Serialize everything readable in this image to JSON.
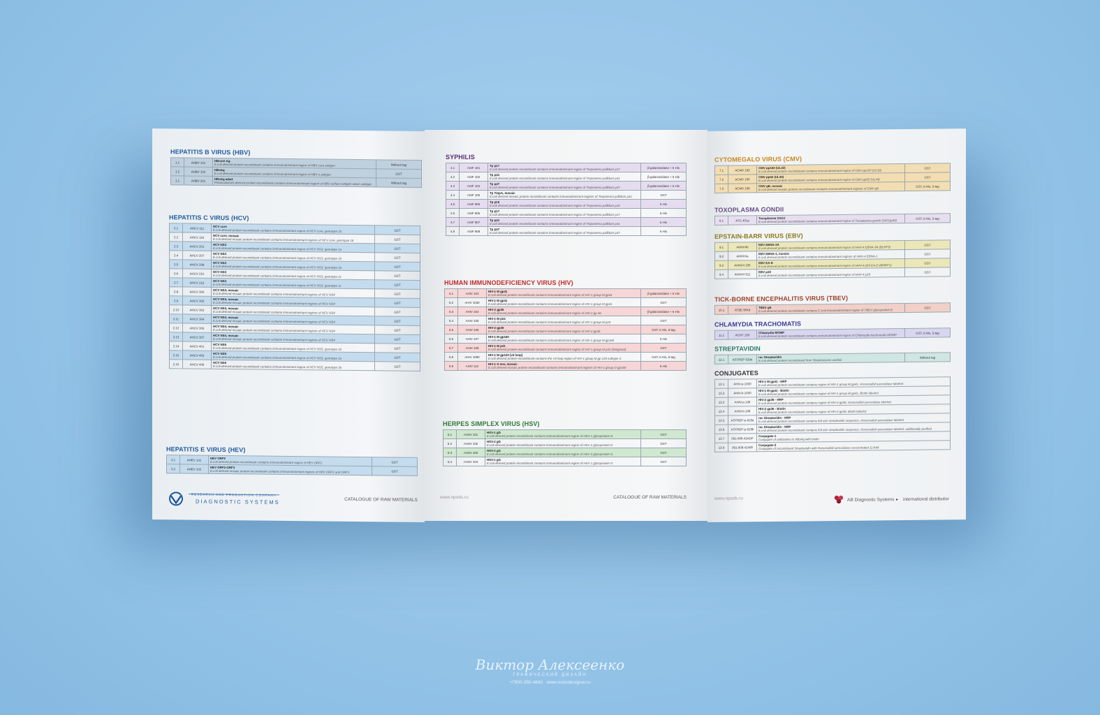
{
  "left": {
    "hbv": {
      "title": "HEPATITIS B VIRUS (HBV)",
      "rows": [
        {
          "n": "1.1",
          "code": "AHBV 101",
          "name": "HBcore Ag",
          "desc": "E.coli derived protein recombinant contains immunodominant region of HBV core antigen",
          "tag": "Without tag"
        },
        {
          "n": "1.2",
          "code": "AHBV 102",
          "name": "HBeAg",
          "desc": "E.coli derived protein recombinant contains immunodominant region of HBV e antigen",
          "tag": "GST"
        },
        {
          "n": "1.1",
          "code": "AHBV 201",
          "name": "HBsAg adw1",
          "desc": "Pichia pastoris derived protein recombinant contains immunodominant region of HBV surface antigen adw1 subtype",
          "tag": "Without tag"
        }
      ]
    },
    "hcv": {
      "title": "HEPATITIS C VIRUS (HCV)",
      "rows": [
        {
          "n": "2.1",
          "code": "AHCV 111",
          "name": "HCV core",
          "desc": "E.coli derived protein recombinant contains immunodominant region of HCV core, genotype 1b",
          "tag": "GST"
        },
        {
          "n": "2.2",
          "code": "AHCV 116",
          "name": "HCV core, mosaic",
          "desc": "E.coli derived mosaic protein recombinant contains immunodominant regions of HCV core, genotype 1b",
          "tag": "GST"
        },
        {
          "n": "2.3",
          "code": "AHCV 201",
          "name": "HCV NS3",
          "desc": "E.coli derived protein recombinant contains immunodominant region of HCV NS3, genotype 1a",
          "tag": "GST"
        },
        {
          "n": "2.4",
          "code": "AHCV 207",
          "name": "HCV NS3",
          "desc": "E.coli derived protein recombinant contains immunodominant region of HCV NS3, genotype 1b",
          "tag": "GST"
        },
        {
          "n": "2.5",
          "code": "AHCV 208",
          "name": "HCV NS3",
          "desc": "E.coli derived protein recombinant contains immunodominant region of HCV NS3, genotype 1b",
          "tag": "GST"
        },
        {
          "n": "2.6",
          "code": "AHCV 210",
          "name": "HCV NS3",
          "desc": "E.coli derived protein recombinant contains immunodominant region of HCV NS3, genotype 2c",
          "tag": "GST"
        },
        {
          "n": "2.7",
          "code": "AHCV 215",
          "name": "HCV NS3",
          "desc": "E.coli derived protein recombinant contains immunodominant region of HCV NS3, genotype 1c",
          "tag": "GST"
        },
        {
          "n": "2.8",
          "code": "AHCV 300",
          "name": "HCV NS4, mosaic",
          "desc": "E.coli derived mosaic protein recombinant contains immunodominant regions of HCV NS4",
          "tag": "GST"
        },
        {
          "n": "2.9",
          "code": "AHCV 302",
          "name": "HCV NS4, mosaic",
          "desc": "E.coli derived mosaic protein recombinant contains immunodominant regions of HCV NS4",
          "tag": "GST"
        },
        {
          "n": "2.10",
          "code": "AHCV 303",
          "name": "HCV NS4, mosaic",
          "desc": "E.coli derived mosaic protein recombinant contains immunodominant regions of HCV NS4",
          "tag": "GST"
        },
        {
          "n": "2.11",
          "code": "AHCV 304",
          "name": "HCV NS4, mosaic",
          "desc": "E.coli derived mosaic protein recombinant contains immunodominant regions of HCV NS4",
          "tag": "GST"
        },
        {
          "n": "2.12",
          "code": "AHCV 305",
          "name": "HCV NS4, mosaic",
          "desc": "E.coli derived mosaic protein recombinant contains immunodominant regions of HCV NS4",
          "tag": "GST"
        },
        {
          "n": "2.13",
          "code": "AHCV 307",
          "name": "HCV NS4, mosaic",
          "desc": "E.coli derived mosaic protein recombinant contains immunodominant regions of HCV NS4",
          "tag": "GST"
        },
        {
          "n": "2.14",
          "code": "AHCV 401",
          "name": "HCV NS5",
          "desc": "E.coli derived protein recombinant contains immunodominant region of HCV NS5, genotype 1b",
          "tag": "GST"
        },
        {
          "n": "2.15",
          "code": "AHCV 403",
          "name": "HCV NS5",
          "desc": "E.coli derived protein recombinant contains immunodominant region of HCV NS5, genotype 1a",
          "tag": "GST"
        },
        {
          "n": "2.16",
          "code": "AHCV 406",
          "name": "HCV NS5",
          "desc": "E.coli derived protein recombinant contains immunodominant region of HCV NS5, genotype 3a",
          "tag": "GST"
        }
      ]
    },
    "hev": {
      "title": "HEPATITIS E VIRUS (HEV)",
      "rows": [
        {
          "n": "3.1",
          "code": "AHEV 101",
          "name": "HEV ORF2",
          "desc": "E.coli derived protein recombinant contains immunodominant region of HEV ORF2",
          "tag": "GST"
        },
        {
          "n": "3.2",
          "code": "AHEV 102",
          "name": "HEV ORF2-ORF3",
          "desc": "E.coli derived mosaic protein recombinant contains immunodominant regions of HEV ORF2 and ORF3",
          "tag": "GST"
        }
      ]
    },
    "logo_top": "RESEARCH AND PRODUCTION COMPANY",
    "logo_name": "DIAGNOSTIC SYSTEMS",
    "catalogue": "CATALOGUE OF RAW MATERIALS"
  },
  "middle": {
    "syph": {
      "title": "SYPHILIS",
      "rows": [
        {
          "n": "4.1",
          "code": "ASIF 101",
          "name": "Tp p17",
          "desc": "E.coli derived protein recombinant contains immunodominant region of Treponema pallidum p17",
          "tag": "β-galactosidase + 6 His"
        },
        {
          "n": "4.2",
          "code": "ASIF 102",
          "name": "Tp p41",
          "desc": "E.coli derived protein recombinant contains immunodominant region of Treponema pallidum p41",
          "tag": "β-galactosidase + 6 His"
        },
        {
          "n": "4.3",
          "code": "ASIF 102",
          "name": "Tp p47",
          "desc": "E.coli derived protein recombinant contains immunodominant region of Treponema pallidum p47",
          "tag": "β-galactosidase + 6 His"
        },
        {
          "n": "4.4",
          "code": "ASIF 105",
          "name": "Tp TmpA, mosaic",
          "desc": "E.coli derived mosaic protein recombinant contains immunodominant regions of Treponema pallidum p41",
          "tag": "GST"
        },
        {
          "n": "4.5",
          "code": "ASIF 905",
          "name": "Tp p15",
          "desc": "E.coli derived protein recombinant contains immunodominant region of Treponema pallidum p15",
          "tag": "6 His"
        },
        {
          "n": "4.6",
          "code": "ASIF 906",
          "name": "Tp p17",
          "desc": "E.coli derived protein recombinant contains immunodominant region of Treponema pallidum p17",
          "tag": "6 His"
        },
        {
          "n": "4.7",
          "code": "ASIF 907",
          "name": "Tp p41",
          "desc": "E.coli derived protein recombinant contains immunodominant region of Treponema pallidum p41",
          "tag": "6 His"
        },
        {
          "n": "4.8",
          "code": "ASIF 908",
          "name": "Tp p47",
          "desc": "E.coli derived protein recombinant contains immunodominant region of Treponema pallidum p47",
          "tag": "6 His"
        }
      ]
    },
    "hiv": {
      "title": "HUMAN IMMUNODEFICIENCY VIRUS (HIV)",
      "rows": [
        {
          "n": "5.1",
          "code": "AHIV 103",
          "name": "HIV-1 M gp41",
          "desc": "E.coli derived protein recombinant contains immunodominant region of HIV-1 group M gp41",
          "tag": "β-galactosidase + 6 His"
        },
        {
          "n": "5.2",
          "code": "AHIV 1030",
          "name": "HIV-1 M gp41",
          "desc": "E.coli derived protein recombinant contains immunodominant region of HIV-1 group M gp41",
          "tag": "GST"
        },
        {
          "n": "5.3",
          "code": "AHIV 104",
          "name": "HIV-2 gp36",
          "desc": "E.coli derived protein recombinant contains immunodominant region of HIV-2 gp 36",
          "tag": "β-galactosidase + 6 His"
        },
        {
          "n": "5.4",
          "code": "AHIV 105",
          "name": "HIV-1 M p24",
          "desc": "E.coli derived protein recombinant contains immunodominant region of HIV-1 group M p24",
          "tag": "GST"
        },
        {
          "n": "5.5",
          "code": "AHIV 106",
          "name": "HIV-2 gp36",
          "desc": "E.coli derived protein recombinant contains immunodominant region of HIV-2 gp36",
          "tag": "GST, 6 His, 5-tag"
        },
        {
          "n": "5.6",
          "code": "AHIV 107",
          "name": "HIV-1 M gp160",
          "desc": "E.coli derived protein recombinant contains immunodominant region of HIV-1 group M gp160",
          "tag": "6 His"
        },
        {
          "n": "5.7",
          "code": "AHIV 108",
          "name": "HIV-1 M p31",
          "desc": "E.coli derived protein recombinant contains immunodominant region of HIV-1 group M p31 (integrase)",
          "tag": "GST"
        },
        {
          "n": "5.8",
          "code": "AHIV 1090",
          "name": "HIV-1 M gp120 (v3 loop)",
          "desc": "E.coli derived protein recombinant contains the V3 loop region of HIV-1 group M gp 120 subtype C",
          "tag": "GST, 6 His, 5-tag"
        },
        {
          "n": "5.9",
          "code": "AHIV 112",
          "name": "HIV-1 O env, mosaic",
          "desc": "E.coli derived mosaic protein recombinant contains immunodominant regions of HIV-1 group O gp160",
          "tag": "6 His"
        }
      ]
    },
    "hsv": {
      "title": "HERPES SIMPLEX VIRUS (HSV)",
      "rows": [
        {
          "n": "6.1",
          "code": "AHSV 101",
          "name": "HSV-1 gD",
          "desc": "E.coli derived protein recombinant contains immunodominant region of HSV-1 glycoprotein D",
          "tag": "GST"
        },
        {
          "n": "6.2",
          "code": "AHSV 102",
          "name": "HSV-2 gD",
          "desc": "E.coli derived protein recombinant contains immunodominant region of HSV 2 glycoprotein D",
          "tag": "GST"
        },
        {
          "n": "6.3",
          "code": "AHSV 103",
          "name": "HSV-2 gG",
          "desc": "E.coli derived protein recombinant contains immunodominant region of HSV 2 glycoprotein G",
          "tag": "GST"
        },
        {
          "n": "6.4",
          "code": "AHSV 104",
          "name": "HSV-1 gG",
          "desc": "E.coli derived protein recombinant contains immunodominant region of HSV 1 glycoprotein G",
          "tag": "GST"
        }
      ]
    },
    "url": "www.npods.ru",
    "catalogue": "CATALOGUE OF RAW MATERIALS"
  },
  "right": {
    "cmv": {
      "title": "CYTOMEGALO VIRUS (CMV)",
      "rows": [
        {
          "n": "7.1",
          "code": "ACMV 102",
          "name": "CMV pp150 (UL32)",
          "desc": "E.coli derived protein recombinant contains immunodominant region of CMV pp150 (UL32)",
          "tag": "GST"
        },
        {
          "n": "7.2",
          "code": "ACMV 105",
          "name": "CMV pp52 (UL44)",
          "desc": "E.coli derived protein recombinant contains immunodominant region of CMV pp52 (UL44)",
          "tag": "GST"
        },
        {
          "n": "7.3",
          "code": "ACMV 108",
          "name": "CMV gB, mosaic",
          "desc": "E.coli derived mosaic protein recombinant contains immunodominant regions of CMV gB",
          "tag": "GST, 6 His, 5-tag"
        }
      ]
    },
    "toxo": {
      "title": "TOXOPLASMA GONDII",
      "rows": [
        {
          "n": "8.1",
          "code": "ATG 401a",
          "name": "Toxoplasma SAG1",
          "desc": "E.coli derived protein recombinant contains immunodominant region of Toxoplasma gondii SAG1(p30)",
          "tag": "GST, 6 His, 5-tag"
        }
      ]
    },
    "ebv": {
      "title": "EPSTAIN-BARR VIRUS (EBV)",
      "rows": [
        {
          "n": "9.1",
          "code": "AHHV4b",
          "name": "EBV EBNA-3A",
          "desc": "E.coli derived protein recombinant contains immunodominant region of HHV-4 EBNA-3A (BLRF3)",
          "tag": "GST"
        },
        {
          "n": "9.2",
          "code": "AHHV4a",
          "name": "EBV EBNA-1, mosaic",
          "desc": "E.coli derived protein recombinant contains immunodominant regions of HHV-4 EBNA-1",
          "tag": "GST"
        },
        {
          "n": "9.3",
          "code": "AHHV4 105",
          "name": "EBV EA-D",
          "desc": "E.coli derived protein recombinant contains immunodominant region of HHV-4 p54 EA-D (BMRF1)",
          "tag": "GST"
        },
        {
          "n": "9.4",
          "code": "AHHV4 911",
          "name": "EBV p18",
          "desc": "E.coli derived protein recombinant contains immunodominant region of HHV-4 p18",
          "tag": "GST"
        }
      ]
    },
    "tbev": {
      "title": "TICK-BORNE ENCEPHALITIS VIRUS (TBEV)",
      "rows": [
        {
          "n": "10.1",
          "code": "ATBE 904d",
          "name": "TBEV gE",
          "desc": "E.coli derived protein recombinant contains C-end immunodominant region of TBEV glycoprotein E",
          "tag": "GST"
        }
      ]
    },
    "chlam": {
      "title": "CHLAMYDIA TRACHOMATIS",
      "rows": [
        {
          "n": "11.1",
          "code": "ACHT 103",
          "name": "Chlamydia MOMP",
          "desc": "E.coli derived protein recombinant contains immunodominant region of Chlamydia trachomatis MOMP",
          "tag": "GST, 6 His, 5-tag"
        }
      ]
    },
    "strep": {
      "title": "STREPTAVIDIN",
      "rows": [
        {
          "n": "12.1",
          "code": "ASTREP 919a",
          "name": "rec Streptavidin",
          "desc": "E.coli derived protein recombinant from Streptomyces avidinii",
          "tag": "Without tag"
        }
      ]
    },
    "conj": {
      "title": "CONJUGATES",
      "rows": [
        {
          "n": "13.1",
          "code": "AHIV-p-1030",
          "name": "HIV-1 M gp41 - HRP",
          "desc": "E.coli derived protein recombinant contains region of HIV-1 group M gp41, Horseradish peroxidase labeled"
        },
        {
          "n": "13.2",
          "code": "AHIV-b-1030",
          "name": "HIV-1 M gp41 - Biotin",
          "desc": "E.coli derived protein recombinant contains region of HIV-1 group M gp41, Biotin labeled"
        },
        {
          "n": "13.3",
          "code": "AHIV-p-106",
          "name": "HIV-2 gp36 - HRP",
          "desc": "E.coli derived protein recombinant contains region of HIV-2 gp36, Horseradish peroxidase labeled"
        },
        {
          "n": "13.4",
          "code": "AHIV-b-106",
          "name": "HIV-2 gp36 - Biotin",
          "desc": "E.coli derived protein recombinant contains region of HIV-2 gp36, Biotin labeled"
        },
        {
          "n": "13.5",
          "code": "ASTREP-p-919a",
          "name": "rec Streptavidin - HRP",
          "desc": "E.coli derived protein recombinant contains full size streptavidin sequence, Horseradish peroxidase labeled"
        },
        {
          "n": "13.6",
          "code": "ASTREP-p-919b",
          "name": "rec Streptavidin - HRP",
          "desc": "E.coli derived protein recombinant contains full size streptavidin sequence, Horseradish peroxidase labeled, additionally purified"
        },
        {
          "n": "13.7",
          "code": "091-008-42ADP",
          "name": "Conjugate-1",
          "desc": "Conjugate of antibodies to HBsAg with biotin"
        },
        {
          "n": "13.8",
          "code": "091-009-42408",
          "name": "Conjugate-2",
          "desc": "Conjugate of recombinant Streptavidin with Horseradish peroxidase concentrated 11-fold"
        }
      ]
    },
    "url": "www.npods.ru",
    "distributor_brand": "AB Diagnostic Systems",
    "distributor_role": "international distributor"
  },
  "watermark": {
    "signature": "Виктор Алексеенко",
    "subtitle": "ГРАФИЧЕСКИЙ ДИЗАЙН",
    "phone": "+7900-350-4842",
    "site": "www.victordesigner.ru"
  },
  "colors": {
    "hbv_title": "#1f5a9e",
    "hcv_title": "#1f5a9e",
    "hev_title": "#1f5a9e",
    "syph_title": "#5a2e7a",
    "hiv_title": "#c02a2a",
    "hsv_title": "#2e7a3a",
    "cmv_title": "#c8861a",
    "toxo_title": "#6a4a8a",
    "ebv_title": "#8a7a1a",
    "tbev_title": "#a0402a",
    "chlam_title": "#3a3a9a",
    "strep_title": "#2a7a6a",
    "conj_title": "#333333",
    "hbv_row": "#bfd0de",
    "hcv_row": "#c4dcee",
    "hev_row": "#c4dcee",
    "syph_row": "#e6dcf0",
    "hiv_row": "#f6d6d6",
    "hsv_row": "#cfe8cf",
    "cmv_row": "#f2deb2",
    "toxo_row": "#e7dff0",
    "ebv_row": "#ece7b8",
    "tbev_row": "#f0d0c8",
    "chlam_row": "#d8d6f0",
    "strep_row": "#cfe6e2"
  }
}
